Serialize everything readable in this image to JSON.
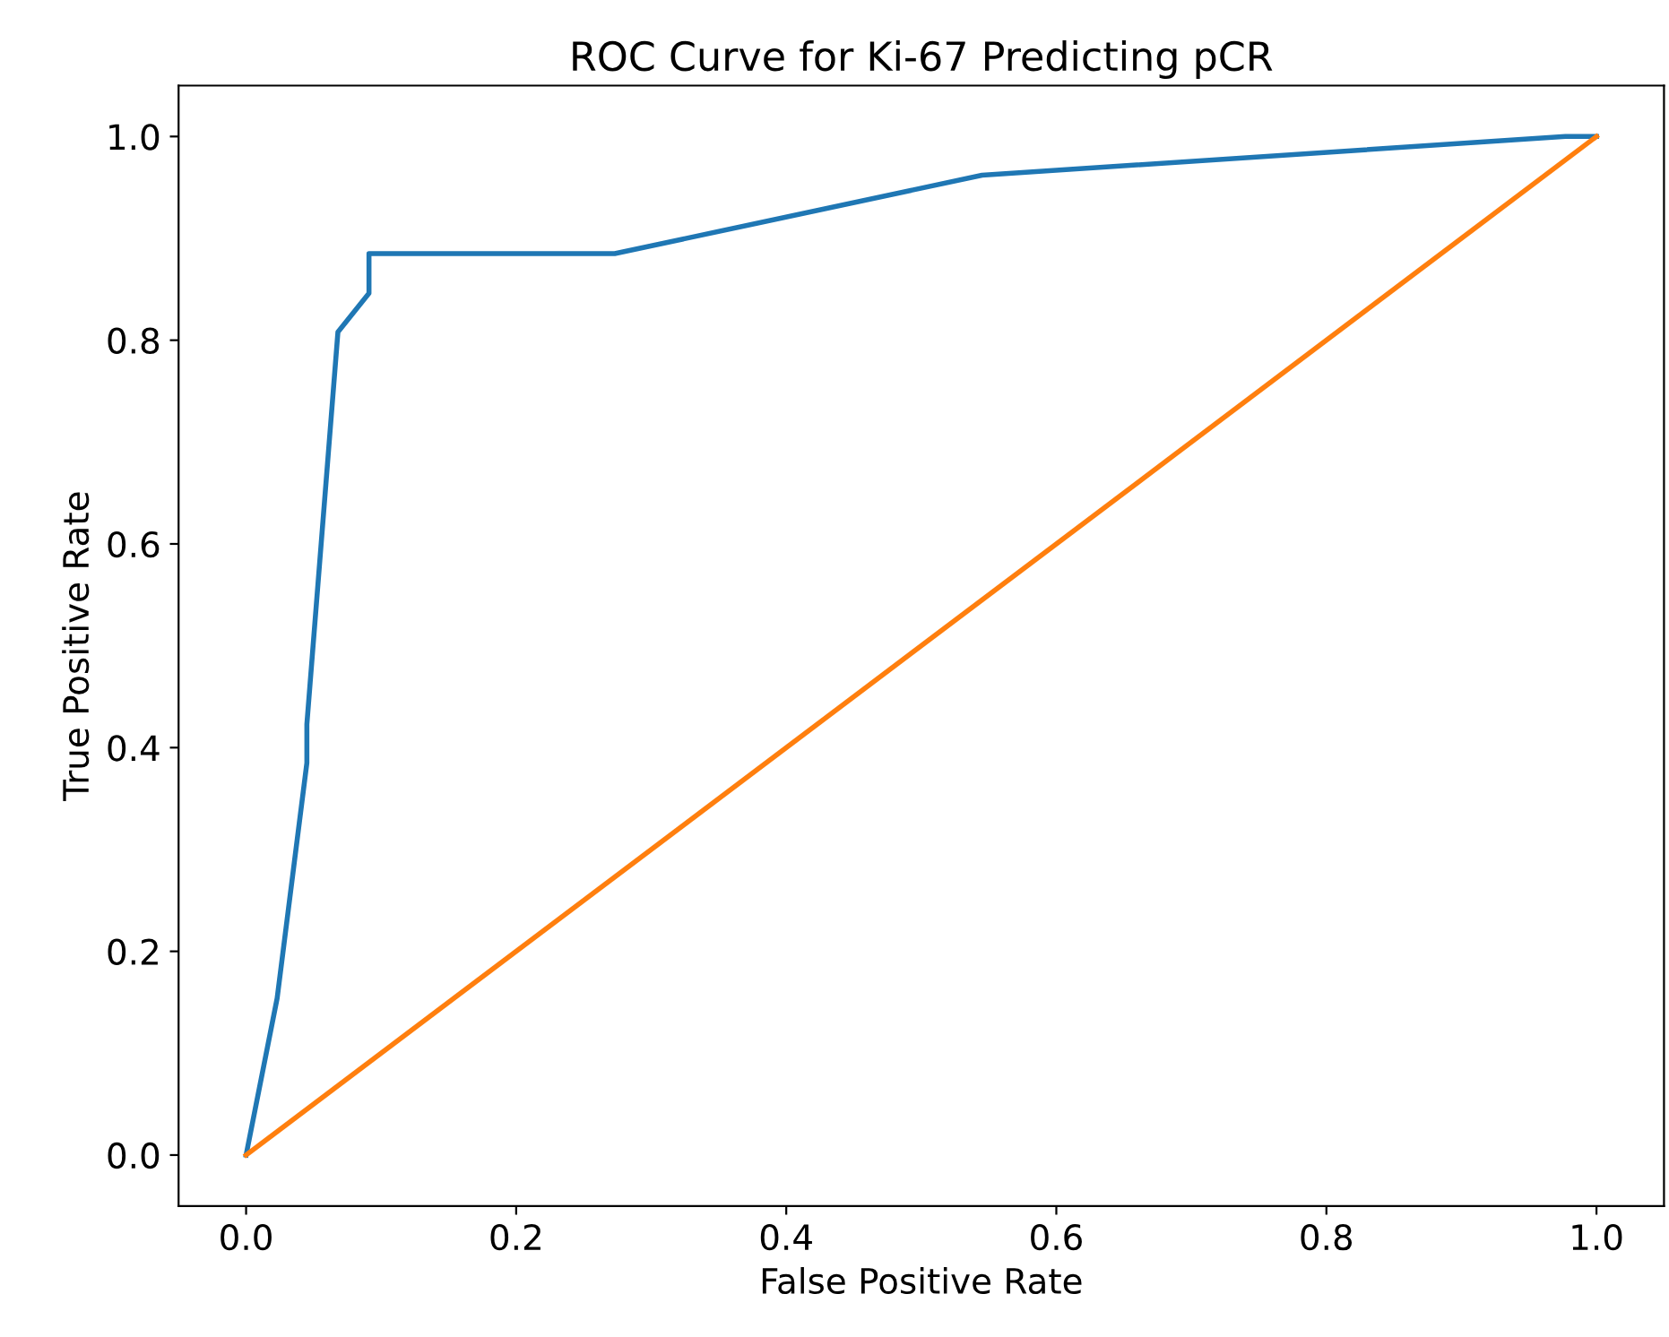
{
  "chart_data": {
    "type": "line",
    "title": "ROC Curve for Ki-67 Predicting pCR",
    "xlabel": "False Positive Rate",
    "ylabel": "True Positive Rate",
    "series": [
      {
        "color": "#1f77b4",
        "x": [
          0,
          0.023,
          0.045,
          0.045,
          0.068,
          0.091,
          0.091,
          0.273,
          0.545,
          0.977,
          1.0
        ],
        "values": [
          0,
          0.154,
          0.385,
          0.423,
          0.808,
          0.846,
          0.885,
          0.885,
          0.962,
          1.0,
          1.0
        ]
      },
      {
        "color": "#ff7f0e",
        "x": [
          0,
          1
        ],
        "values": [
          0,
          1
        ]
      }
    ],
    "xlim": [
      -0.05,
      1.05
    ],
    "ylim": [
      -0.05,
      1.05
    ],
    "xticks": [
      {
        "value": 0,
        "label": "0.0"
      },
      {
        "value": 0.2,
        "label": "0.2"
      },
      {
        "value": 0.4,
        "label": "0.4"
      },
      {
        "value": 0.6,
        "label": "0.6"
      },
      {
        "value": 0.8,
        "label": "0.8"
      },
      {
        "value": 1.0,
        "label": "1.0"
      }
    ],
    "yticks": [
      {
        "value": 0,
        "label": "0.0"
      },
      {
        "value": 0.2,
        "label": "0.2"
      },
      {
        "value": 0.4,
        "label": "0.4"
      },
      {
        "value": 0.6,
        "label": "0.6"
      },
      {
        "value": 0.8,
        "label": "0.8"
      },
      {
        "value": 1.0,
        "label": "1.0"
      }
    ],
    "marker": "none",
    "line_style": "solid"
  }
}
